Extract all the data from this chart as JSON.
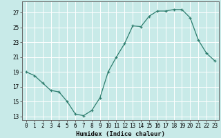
{
  "x": [
    0,
    1,
    2,
    3,
    4,
    5,
    6,
    7,
    8,
    9,
    10,
    11,
    12,
    13,
    14,
    15,
    16,
    17,
    18,
    19,
    20,
    21,
    22,
    23
  ],
  "y": [
    19,
    18.5,
    17.5,
    16.5,
    16.3,
    15.0,
    13.3,
    13.1,
    13.8,
    15.5,
    19.0,
    21.0,
    22.8,
    25.2,
    25.1,
    26.5,
    27.2,
    27.2,
    27.4,
    27.4,
    26.3,
    23.3,
    21.5,
    20.5
  ],
  "line_color": "#2e7d6e",
  "marker": "+",
  "bg_color": "#c8eae8",
  "grid_color": "#ffffff",
  "xlabel": "Humidex (Indice chaleur)",
  "xlim": [
    -0.5,
    23.5
  ],
  "ylim": [
    12.5,
    28.5
  ],
  "yticks": [
    13,
    15,
    17,
    19,
    21,
    23,
    25,
    27
  ],
  "xticks": [
    0,
    1,
    2,
    3,
    4,
    5,
    6,
    7,
    8,
    9,
    10,
    11,
    12,
    13,
    14,
    15,
    16,
    17,
    18,
    19,
    20,
    21,
    22,
    23
  ],
  "xlabel_fontsize": 6.5,
  "tick_fontsize": 5.5,
  "spine_color": "#666666",
  "line_width": 0.9,
  "marker_size": 3.5
}
